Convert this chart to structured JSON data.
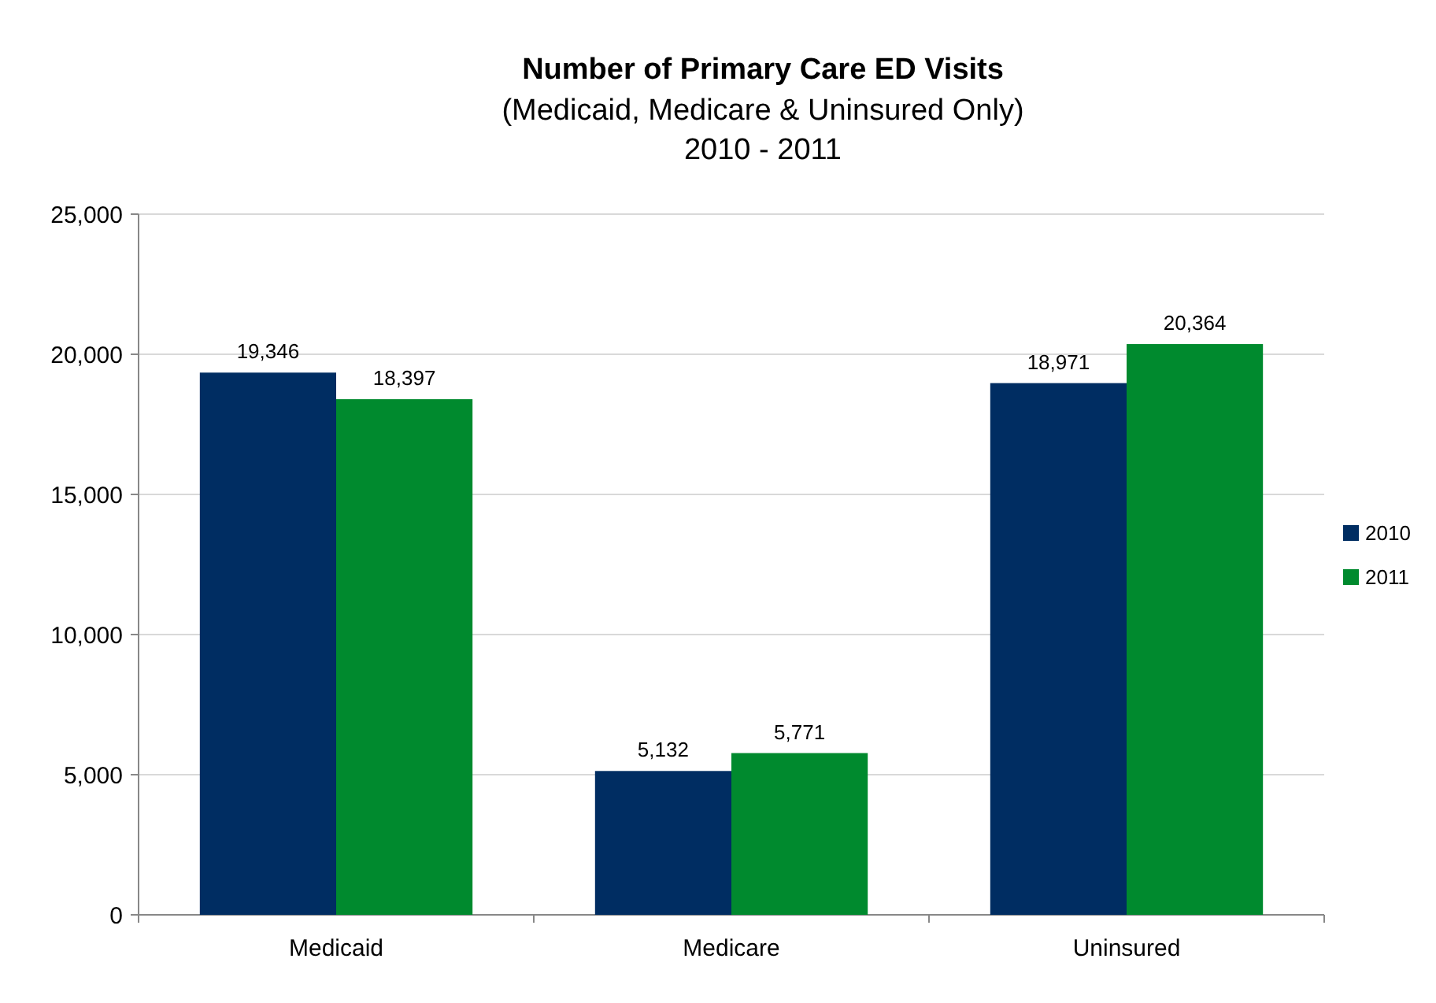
{
  "chart_data": {
    "type": "bar",
    "title": "Number of Primary Care ED Visits",
    "subtitle": "(Medicaid, Medicare & Uninsured Only)\n2010 - 2011",
    "categories": [
      "Medicaid",
      "Medicare",
      "Uninsured"
    ],
    "series": [
      {
        "name": "2010",
        "color": "#002d62",
        "values": [
          19346,
          5132,
          18971
        ],
        "value_labels": [
          "19,346",
          "5,132",
          "18,971"
        ]
      },
      {
        "name": "2011",
        "color": "#008a2e",
        "values": [
          18397,
          5771,
          20364
        ],
        "value_labels": [
          "18,397",
          "5,771",
          "20,364"
        ]
      }
    ],
    "ylim": [
      0,
      25000
    ],
    "yticks": [
      {
        "value": 0,
        "label": "0"
      },
      {
        "value": 5000,
        "label": "5,000"
      },
      {
        "value": 10000,
        "label": "10,000"
      },
      {
        "value": 15000,
        "label": "15,000"
      },
      {
        "value": 20000,
        "label": "20,000"
      },
      {
        "value": 25000,
        "label": "25,000"
      }
    ],
    "grid": "y",
    "legend": "right"
  }
}
